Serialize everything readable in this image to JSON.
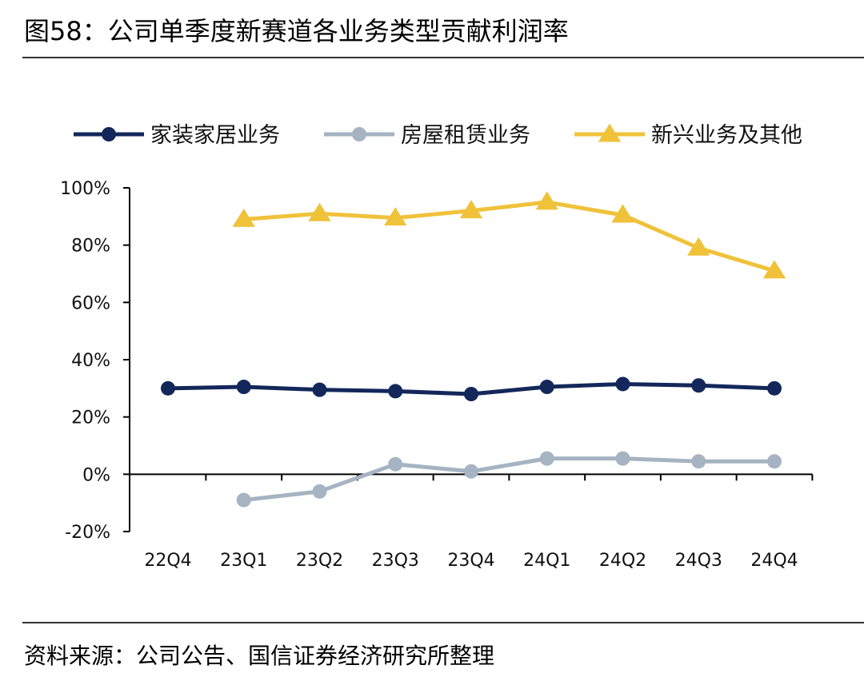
{
  "title": "图58：公司单季度新赛道各业务类型贡献利润率",
  "source": "资料来源：公司公告、国信证券经济研究所整理",
  "chart_data": {
    "type": "line",
    "x": [
      "22Q4",
      "23Q1",
      "23Q2",
      "23Q3",
      "23Q4",
      "24Q1",
      "24Q2",
      "24Q3",
      "24Q4"
    ],
    "yticks": [
      "100%",
      "80%",
      "60%",
      "40%",
      "20%",
      "0%",
      "-20%"
    ],
    "ylim": [
      -20,
      100
    ],
    "legend_position": "top",
    "series": [
      {
        "name": "家装家居业务",
        "color": "#13275a",
        "marker": "circle",
        "values": [
          30,
          30.5,
          29.5,
          29,
          28,
          30.5,
          31.5,
          31,
          30
        ]
      },
      {
        "name": "房屋租赁业务",
        "color": "#a5b3c2",
        "marker": "circle",
        "values": [
          null,
          -9,
          -6,
          3.5,
          1,
          5.5,
          5.5,
          4.5,
          4.5
        ]
      },
      {
        "name": "新兴业务及其他",
        "color": "#f0c23a",
        "marker": "triangle",
        "values": [
          null,
          89,
          91,
          89.5,
          92,
          95,
          90.5,
          79,
          71
        ]
      }
    ]
  }
}
